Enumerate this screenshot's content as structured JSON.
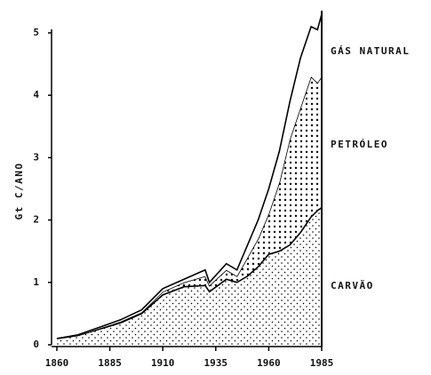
{
  "chart_data": {
    "type": "stacked_area",
    "y_label": "Gt C/ANO",
    "x": [
      1860,
      1870,
      1880,
      1890,
      1900,
      1910,
      1920,
      1930,
      1932,
      1940,
      1945,
      1950,
      1955,
      1960,
      1965,
      1970,
      1975,
      1980,
      1983,
      1985
    ],
    "series": [
      {
        "name": "CARVÃO",
        "color": "#000000",
        "values": [
          0.1,
          0.15,
          0.25,
          0.35,
          0.5,
          0.8,
          0.93,
          0.95,
          0.85,
          1.05,
          1.0,
          1.1,
          1.25,
          1.45,
          1.5,
          1.6,
          1.8,
          2.05,
          2.15,
          2.2
        ]
      },
      {
        "name": "PETRÓLEO",
        "color": "#000000",
        "values": [
          0,
          0,
          0.01,
          0.02,
          0.02,
          0.05,
          0.07,
          0.15,
          0.1,
          0.15,
          0.1,
          0.3,
          0.45,
          0.65,
          1.1,
          1.7,
          2.0,
          2.25,
          2.05,
          2.1
        ]
      },
      {
        "name": "GÁS NATURAL",
        "color": "#000000",
        "values": [
          0,
          0.01,
          0.02,
          0.03,
          0.04,
          0.05,
          0.05,
          0.1,
          0.05,
          0.1,
          0.1,
          0.2,
          0.3,
          0.4,
          0.5,
          0.6,
          0.8,
          0.8,
          0.85,
          1.0
        ]
      }
    ],
    "xlim": [
      1860,
      1985
    ],
    "xticks": [
      1860,
      1885,
      1910,
      1935,
      1960,
      1985
    ],
    "ylim": [
      0,
      5
    ],
    "yticks": [
      0,
      1,
      2,
      3,
      4,
      5
    ]
  }
}
